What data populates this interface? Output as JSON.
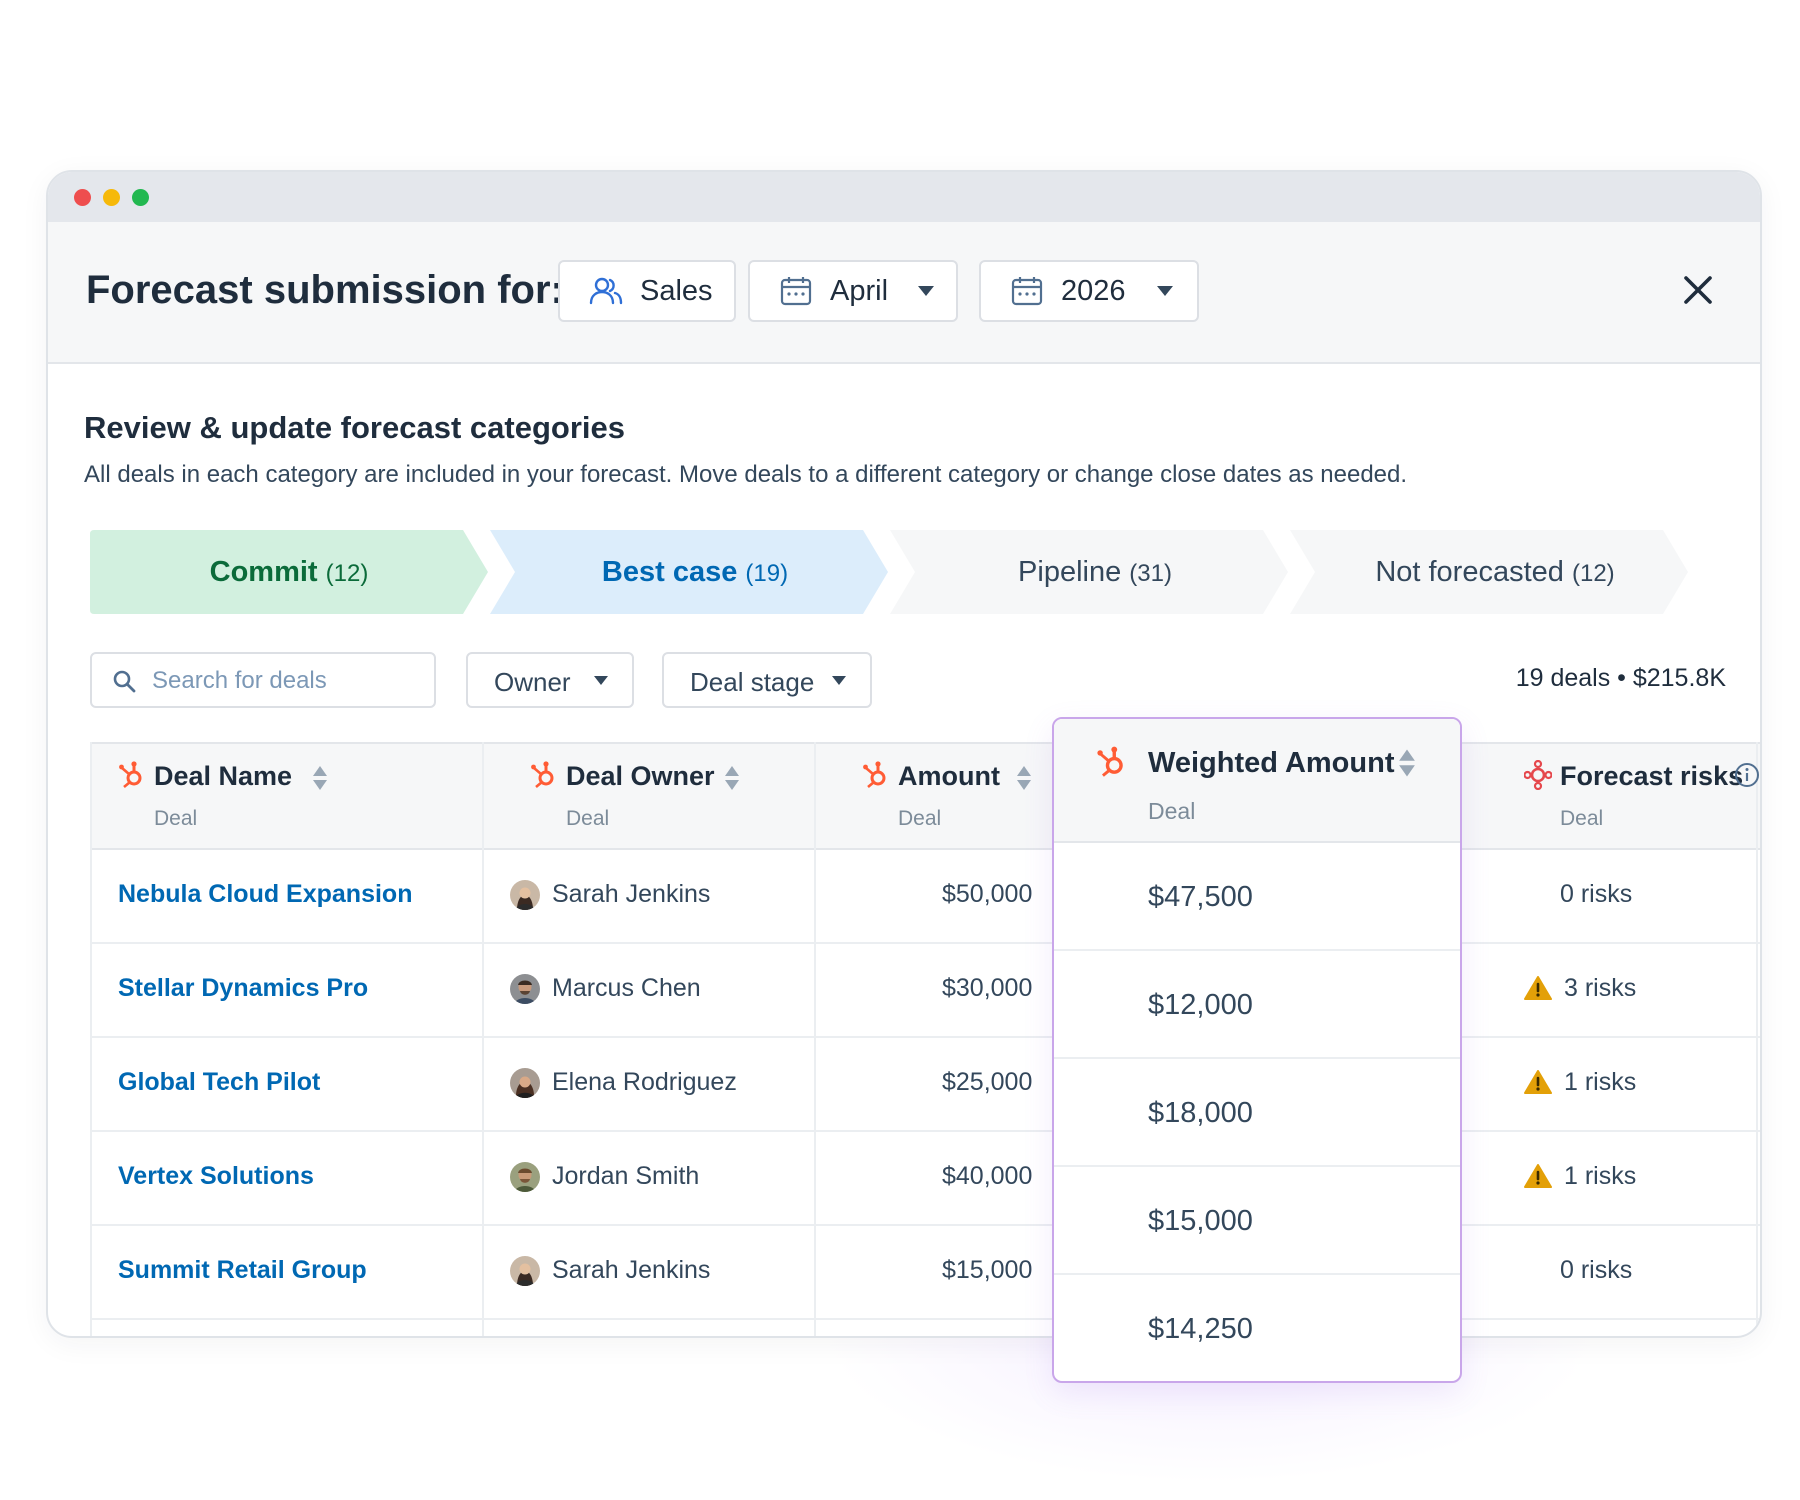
{
  "header": {
    "title": "Forecast submission for:",
    "team_label": "Sales",
    "team_icon": "users-icon",
    "month_label": "April",
    "year_label": "2026",
    "calendar_icon": "calendar-icon",
    "close_icon": "close-icon"
  },
  "section": {
    "title": "Review & update forecast categories",
    "subtitle": "All deals in each category are included in your forecast. Move deals to a different category or change close dates as needed."
  },
  "tabs": [
    {
      "label": "Commit",
      "count": "(12)",
      "state": "commit",
      "color": "#d2f0df",
      "text_color": "#0b6b3a"
    },
    {
      "label": "Best case",
      "count": "(19)",
      "state": "active",
      "color": "#dcedfb",
      "text_color": "#0068b3"
    },
    {
      "label": "Pipeline",
      "count": "(31)",
      "state": "inactive",
      "color": "#f6f7f8",
      "text_color": "#33475b"
    },
    {
      "label": "Not forecasted",
      "count": "(12)",
      "state": "inactive",
      "color": "#f6f7f8",
      "text_color": "#33475b"
    }
  ],
  "filters": {
    "search_placeholder": "Search for deals",
    "owner_label": "Owner",
    "stage_label": "Deal stage",
    "summary": "19 deals  • $215.8K"
  },
  "table": {
    "columns": [
      {
        "label": "Deal Name",
        "sub": "Deal",
        "icon": "hubspot-sprocket-icon"
      },
      {
        "label": "Deal Owner",
        "sub": "Deal",
        "icon": "hubspot-sprocket-icon"
      },
      {
        "label": "Amount",
        "sub": "Deal",
        "icon": "hubspot-sprocket-icon"
      },
      {
        "label": "Weighted Amount",
        "sub": "Deal",
        "icon": "hubspot-sprocket-icon"
      },
      {
        "label": "Forecast risks",
        "sub": "Deal",
        "icon": "forecast-risk-icon",
        "info_icon": "info-icon"
      }
    ],
    "rows": [
      {
        "deal": "Nebula Cloud Expansion",
        "owner": "Sarah Jenkins",
        "amount": "$50,000",
        "weighted": "$47,500",
        "risks": "0 risks",
        "warn": false
      },
      {
        "deal": "Stellar Dynamics Pro",
        "owner": "Marcus Chen",
        "amount": "$30,000",
        "weighted": "$12,000",
        "risks": "3 risks",
        "warn": true
      },
      {
        "deal": "Global Tech Pilot",
        "owner": "Elena Rodriguez",
        "amount": "$25,000",
        "weighted": "$18,000",
        "risks": "1 risks",
        "warn": true
      },
      {
        "deal": "Vertex Solutions",
        "owner": "Jordan Smith",
        "amount": "$40,000",
        "weighted": "$15,000",
        "risks": "1 risks",
        "warn": true
      },
      {
        "deal": "Summit Retail Group",
        "owner": "Sarah Jenkins",
        "amount": "$15,000",
        "weighted": "$14,250",
        "risks": "0 risks",
        "warn": false
      }
    ]
  },
  "colors": {
    "accent_blue": "#0068b3",
    "hubspot_orange": "#ff5c35",
    "warning": "#e3a008",
    "highlight_border": "#c9a6ea"
  }
}
